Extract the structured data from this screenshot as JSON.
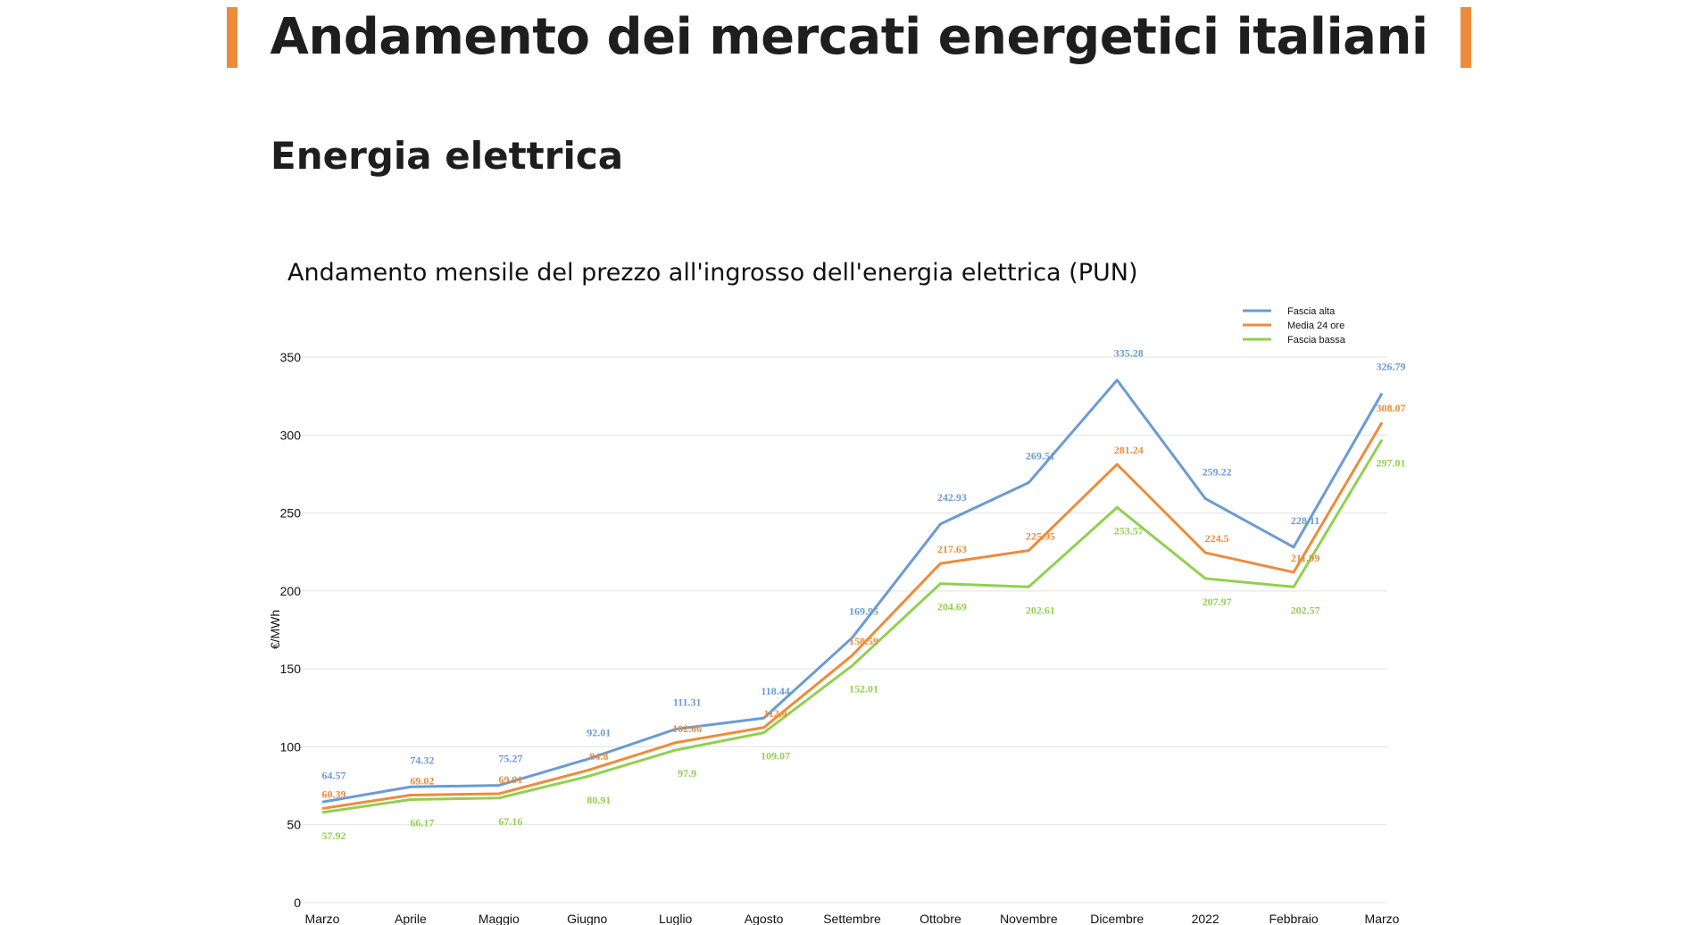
{
  "page": {
    "main_title": "Andamento dei mercati energetici italiani",
    "section_title": "Energia elettrica",
    "accent_color": "#ec8c3a"
  },
  "chart_data": {
    "type": "line",
    "title": "Andamento mensile del prezzo all'ingrosso dell'energia elettrica (PUN)",
    "xlabel": "",
    "ylabel": "€/MWh",
    "ylim": [
      0,
      350
    ],
    "yticks": [
      0,
      50,
      100,
      150,
      200,
      250,
      300,
      350
    ],
    "grid": true,
    "legend_position": "top-right",
    "categories": [
      "Marzo",
      "Aprile",
      "Maggio",
      "Giugno",
      "Luglio",
      "Agosto",
      "Settembre",
      "Ottobre",
      "Novembre",
      "Dicembre",
      "2022",
      "Febbraio",
      "Marzo"
    ],
    "series": [
      {
        "name": "Fascia alta",
        "color": "#6b9bd2",
        "values": [
          64.57,
          74.32,
          75.27,
          92.01,
          111.31,
          118.44,
          169.95,
          242.93,
          269.51,
          335.28,
          259.22,
          228.11,
          326.79
        ]
      },
      {
        "name": "Media 24 ore",
        "color": "#ec8c3a",
        "values": [
          60.39,
          69.02,
          69.91,
          84.8,
          102.66,
          112.4,
          158.59,
          217.63,
          225.95,
          281.24,
          224.5,
          211.99,
          308.07
        ]
      },
      {
        "name": "Fascia bassa",
        "color": "#92d050",
        "values": [
          57.92,
          66.17,
          67.16,
          80.91,
          97.9,
          109.07,
          152.01,
          204.69,
          202.61,
          253.57,
          207.97,
          202.57,
          297.01
        ]
      }
    ]
  }
}
